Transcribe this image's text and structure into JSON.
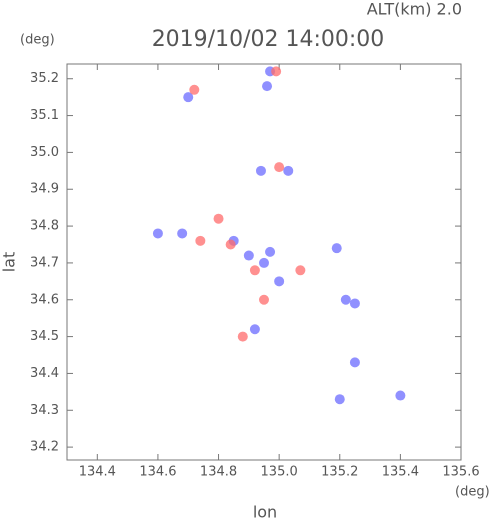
{
  "chart_data": {
    "type": "scatter",
    "title": "2019/10/02 14:00:00",
    "subtitle": "ALT(km) 2.0",
    "y_unit": "(deg)",
    "x_unit": "(deg)",
    "x_label": "lon",
    "y_label": "lat",
    "xlim": [
      134.3,
      135.6
    ],
    "ylim": [
      34.165,
      35.24
    ],
    "xticks": [
      134.4,
      134.6,
      134.8,
      {
        "value": 135,
        "label": "135.0"
      },
      135.2,
      135.4,
      135.6
    ],
    "yticks": [
      34.2,
      34.3,
      34.4,
      34.5,
      34.6,
      34.7,
      34.8,
      34.9,
      {
        "value": 35,
        "label": "35.0"
      },
      35.1,
      35.2
    ],
    "series": [
      {
        "color": "#6b6bff",
        "x": [
          134.7,
          134.96,
          134.97,
          134.94,
          135.03,
          134.68,
          134.6,
          134.9,
          134.95,
          135.0,
          135.19,
          135.25,
          135.22,
          134.92,
          135.2,
          135.4,
          135.25,
          134.85,
          134.97
        ],
        "values": [
          35.15,
          35.18,
          35.22,
          34.95,
          34.95,
          34.78,
          34.78,
          34.72,
          34.7,
          34.65,
          34.74,
          34.59,
          34.6,
          34.52,
          34.33,
          34.34,
          34.43,
          34.76,
          34.73
        ]
      },
      {
        "color": "#ff6b6b",
        "x": [
          134.72,
          134.99,
          135.0,
          134.8,
          134.84,
          134.88,
          134.92,
          135.07,
          134.95,
          134.74
        ],
        "values": [
          35.17,
          35.22,
          34.96,
          34.82,
          34.75,
          34.5,
          34.68,
          34.68,
          34.6,
          34.76
        ]
      }
    ]
  }
}
